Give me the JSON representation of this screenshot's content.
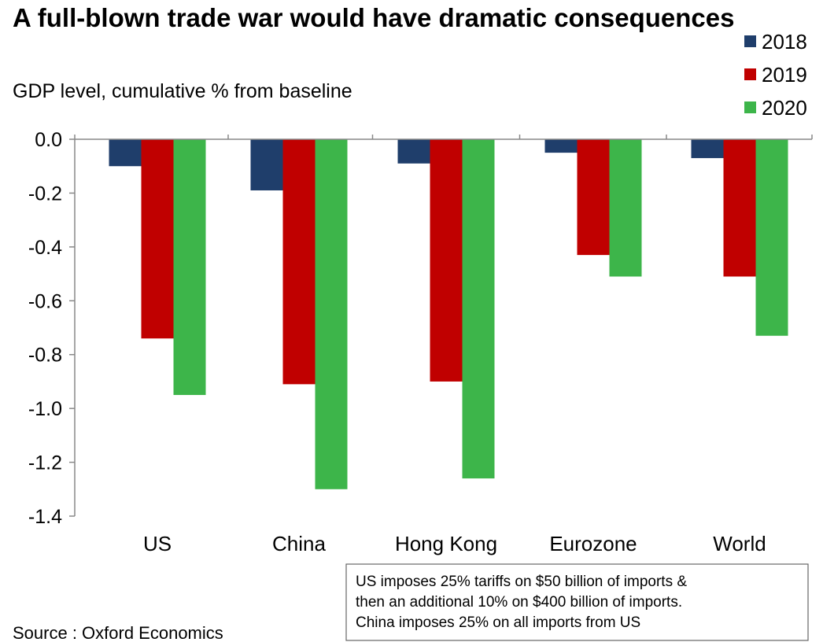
{
  "chart_data": {
    "type": "bar",
    "title": "A full-blown trade war would have dramatic consequences",
    "subtitle": "GDP level, cumulative % from baseline",
    "categories": [
      "US",
      "China",
      "Hong Kong",
      "Eurozone",
      "World"
    ],
    "series": [
      {
        "name": "2018",
        "color": "#1f3e6b",
        "values": [
          -0.1,
          -0.19,
          -0.09,
          -0.05,
          -0.07
        ]
      },
      {
        "name": "2019",
        "color": "#c00000",
        "values": [
          -0.74,
          -0.91,
          -0.9,
          -0.43,
          -0.51
        ]
      },
      {
        "name": "2020",
        "color": "#3db54a",
        "values": [
          -0.95,
          -1.3,
          -1.26,
          -0.51,
          -0.73
        ]
      }
    ],
    "ylim": [
      -1.4,
      0.0
    ],
    "yticks": [
      "0.0",
      "-0.2",
      "-0.4",
      "-0.6",
      "-0.8",
      "-1.0",
      "-1.2",
      "-1.4"
    ],
    "ytick_values": [
      0.0,
      -0.2,
      -0.4,
      -0.6,
      -0.8,
      -1.0,
      -1.2,
      -1.4
    ],
    "legend_position": "top-right",
    "grid": false,
    "source": "Source : Oxford Economics",
    "note_lines": [
      "US imposes 25% tariffs on $50 billion of imports &",
      "then an additional 10% on $400 billion of imports.",
      "China imposes 25% on all imports from US"
    ]
  }
}
